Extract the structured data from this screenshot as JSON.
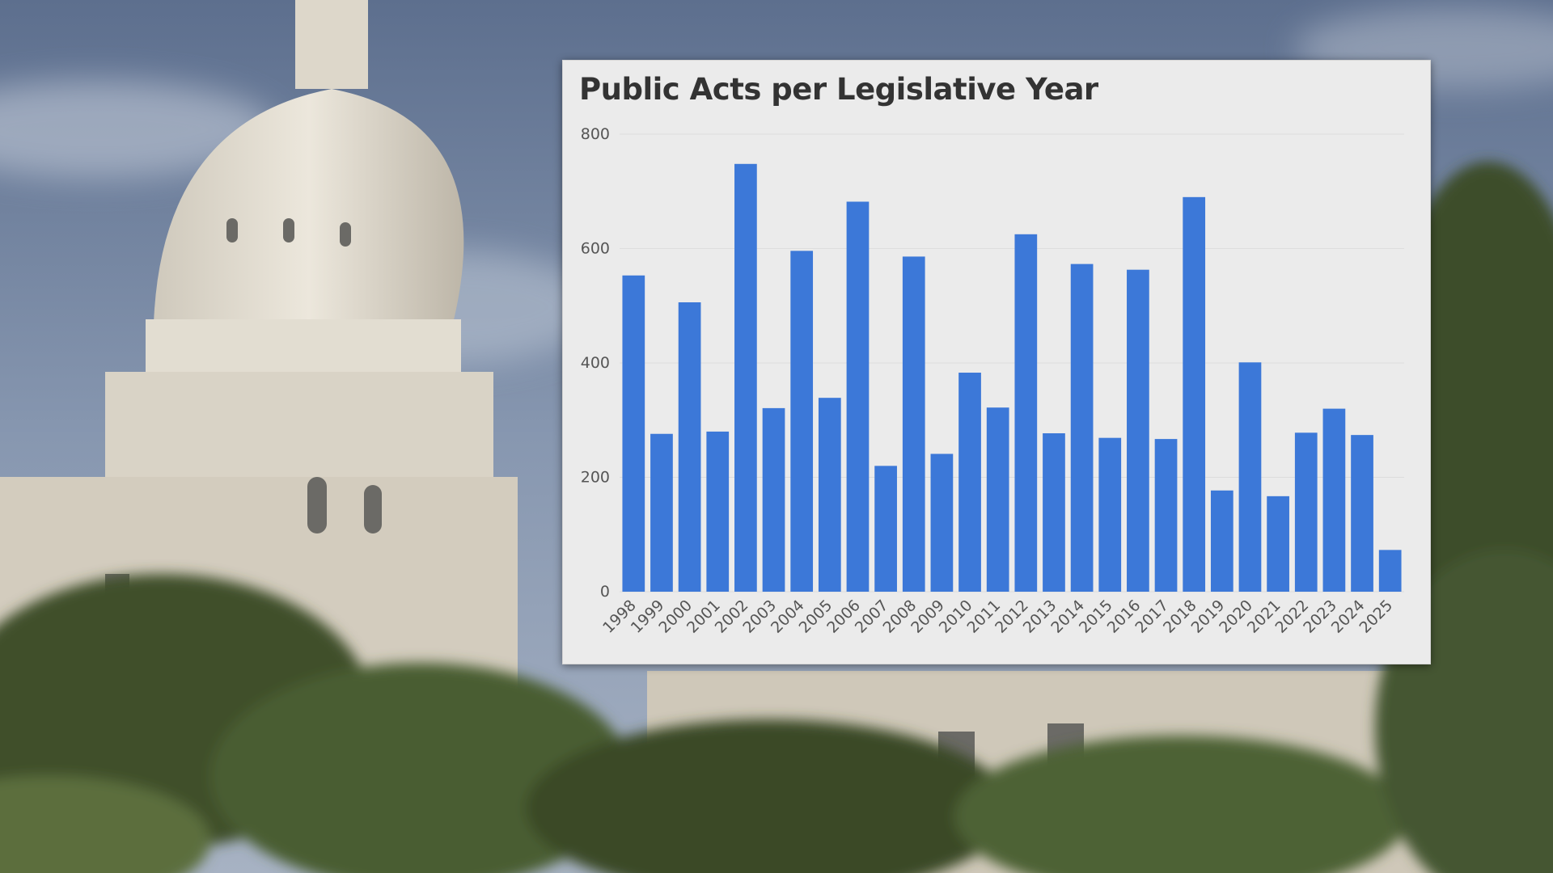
{
  "background": {
    "description_icon": "capitol-dome-photo",
    "sky_color": "#7f8fa8",
    "stone_color": "#e6e1d6",
    "foliage_color": "#4a5d33"
  },
  "colors": {
    "bar": "#3c78d8",
    "card": "#ebebeb",
    "title": "#333333",
    "grid": "#dddddd"
  },
  "chart_data": {
    "type": "bar",
    "title": "Public Acts per Legislative Year",
    "xlabel": "",
    "ylabel": "",
    "ylim": [
      0,
      800
    ],
    "yticks": [
      0,
      200,
      400,
      600,
      800
    ],
    "grid": true,
    "legend": "none",
    "categories": [
      "1998",
      "1999",
      "2000",
      "2001",
      "2002",
      "2003",
      "2004",
      "2005",
      "2006",
      "2007",
      "2008",
      "2009",
      "2010",
      "2011",
      "2012",
      "2013",
      "2014",
      "2015",
      "2016",
      "2017",
      "2018",
      "2019",
      "2020",
      "2021",
      "2022",
      "2023",
      "2024",
      "2025"
    ],
    "values": [
      553,
      276,
      506,
      280,
      748,
      321,
      596,
      339,
      682,
      220,
      586,
      241,
      383,
      322,
      625,
      277,
      573,
      269,
      563,
      267,
      690,
      177,
      401,
      167,
      278,
      320,
      274,
      73
    ]
  }
}
